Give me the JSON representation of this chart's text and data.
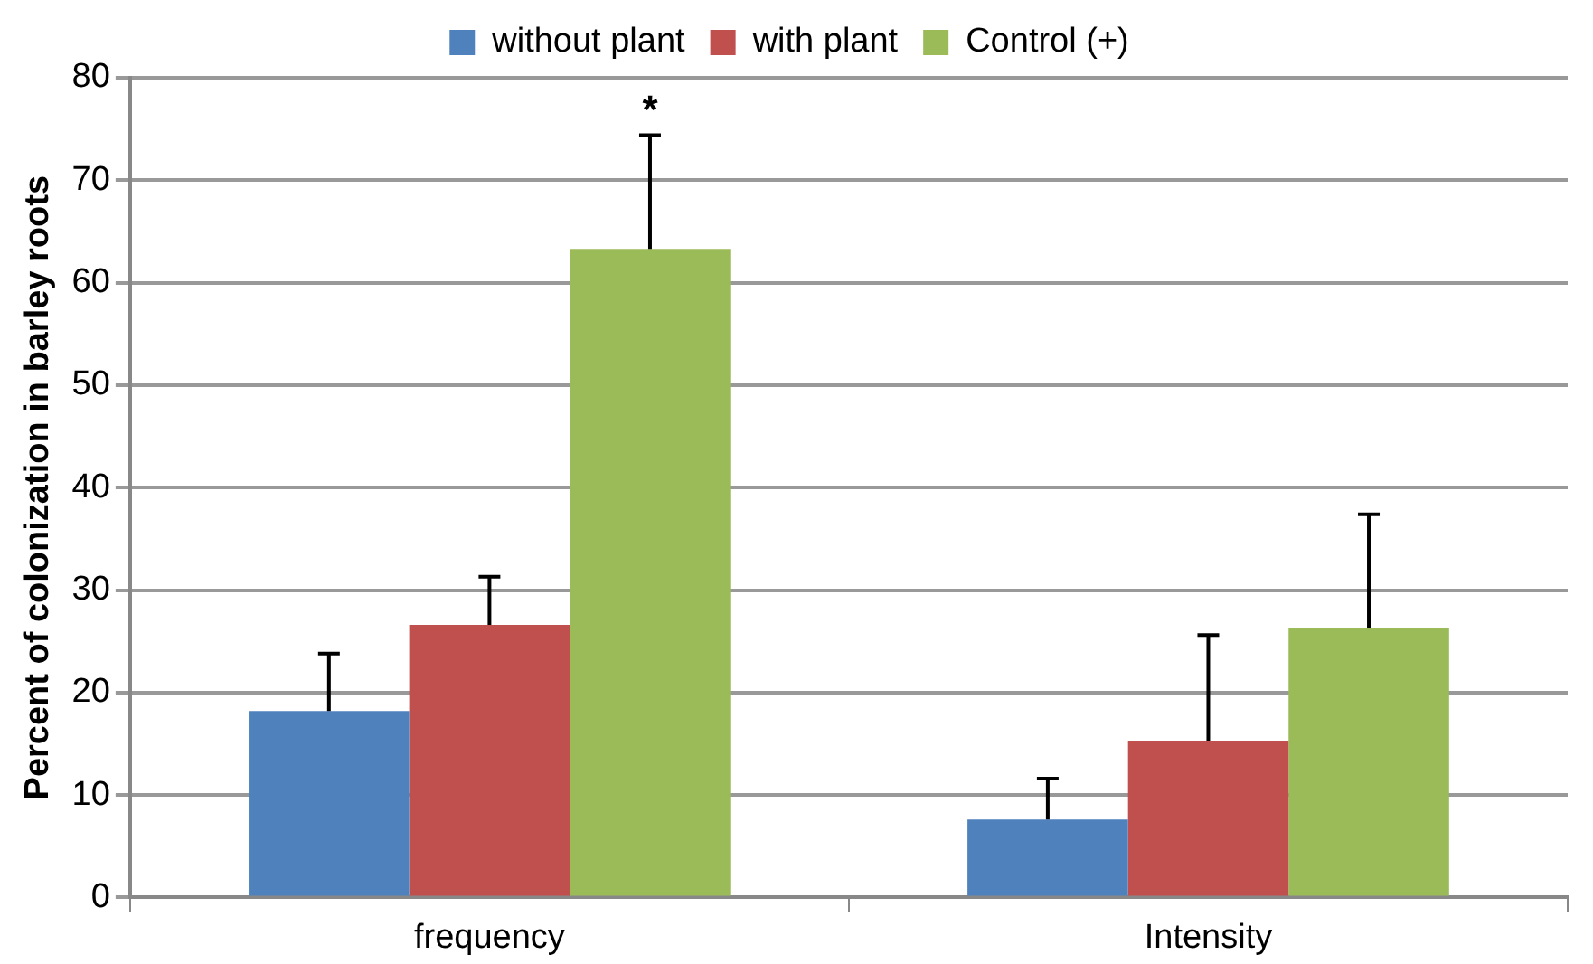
{
  "chart_data": {
    "type": "bar",
    "ylabel": "Percent of colonization in barley roots",
    "categories": [
      "frequency",
      "Intensity"
    ],
    "series": [
      {
        "name": "without plant",
        "color": "#4f81bd",
        "values": [
          18.2,
          7.6
        ],
        "errors": [
          5.6,
          4.0
        ]
      },
      {
        "name": "with plant",
        "color": "#c0504d",
        "values": [
          26.6,
          15.3
        ],
        "errors": [
          4.7,
          10.3
        ]
      },
      {
        "name": "Control (+)",
        "color": "#9bbb59",
        "values": [
          63.3,
          26.3
        ],
        "errors": [
          11.1,
          11.1
        ]
      }
    ],
    "ylim": [
      0,
      80
    ],
    "yticks": [
      0,
      10,
      20,
      30,
      40,
      50,
      60,
      70,
      80
    ],
    "grid": "y",
    "legend": "top",
    "annotations": [
      "*"
    ]
  }
}
